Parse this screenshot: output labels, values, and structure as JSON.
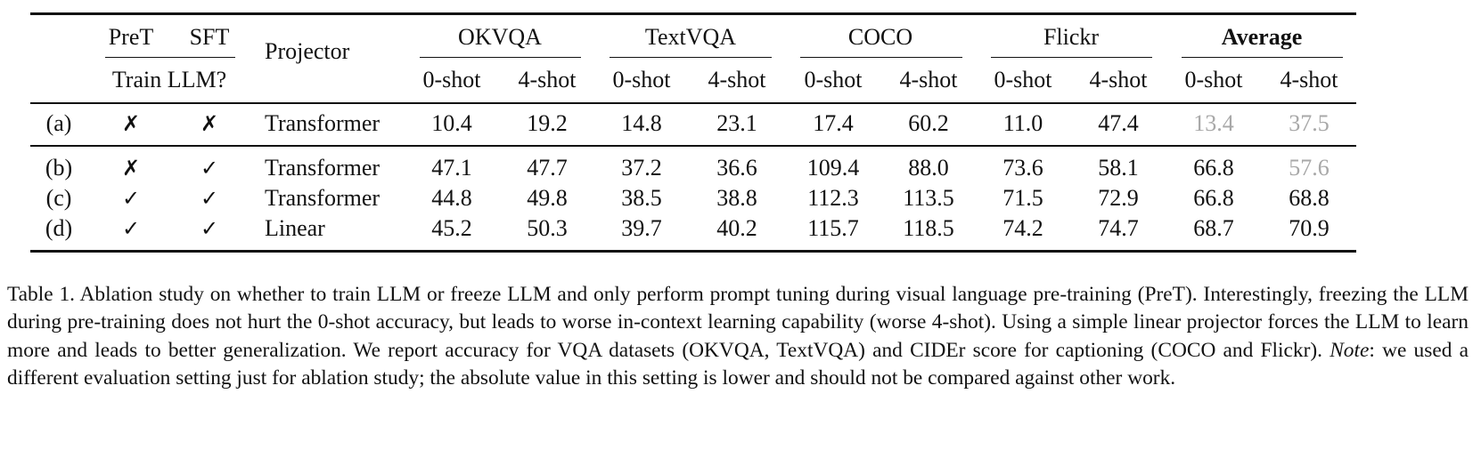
{
  "table": {
    "header": {
      "pret": "PreT",
      "sft": "SFT",
      "train_llm": "Train LLM?",
      "projector": "Projector",
      "groups": [
        "OKVQA",
        "TextVQA",
        "COCO",
        "Flickr",
        "Average"
      ],
      "subcols": [
        "0-shot",
        "4-shot",
        "0-shot",
        "4-shot",
        "0-shot",
        "4-shot",
        "0-shot",
        "4-shot",
        "0-shot",
        "4-shot"
      ]
    },
    "rows": [
      {
        "id": "(a)",
        "pret": "✗",
        "sft": "✗",
        "projector": "Transformer",
        "values": [
          "10.4",
          "19.2",
          "14.8",
          "23.1",
          "17.4",
          "60.2",
          "11.0",
          "47.4",
          "13.4",
          "37.5"
        ]
      },
      {
        "id": "(b)",
        "pret": "✗",
        "sft": "✓",
        "projector": "Transformer",
        "values": [
          "47.1",
          "47.7",
          "37.2",
          "36.6",
          "109.4",
          "88.0",
          "73.6",
          "58.1",
          "66.8",
          "57.6"
        ]
      },
      {
        "id": "(c)",
        "pret": "✓",
        "sft": "✓",
        "projector": "Transformer",
        "values": [
          "44.8",
          "49.8",
          "38.5",
          "38.8",
          "112.3",
          "113.5",
          "71.5",
          "72.9",
          "66.8",
          "68.8"
        ]
      },
      {
        "id": "(d)",
        "pret": "✓",
        "sft": "✓",
        "projector": "Linear",
        "values": [
          "45.2",
          "50.3",
          "39.7",
          "40.2",
          "115.7",
          "118.5",
          "74.2",
          "74.7",
          "68.7",
          "70.9"
        ]
      }
    ]
  },
  "caption": {
    "text_before_note": "Table 1. Ablation study on whether to train LLM or freeze LLM and only perform prompt tuning during visual language pre-training (PreT). Interestingly, freezing the LLM during pre-training does not hurt the 0-shot accuracy, but leads to worse in-context learning capability (worse 4-shot). Using a simple linear projector forces the LLM to learn more and leads to better generalization. We report accuracy for VQA datasets (OKVQA, TextVQA) and CIDEr score for captioning (COCO and Flickr). ",
    "note_label": "Note",
    "text_after_note": ": we used a different evaluation setting just for ablation study; the absolute value in this setting is lower and should not be compared against other work."
  }
}
